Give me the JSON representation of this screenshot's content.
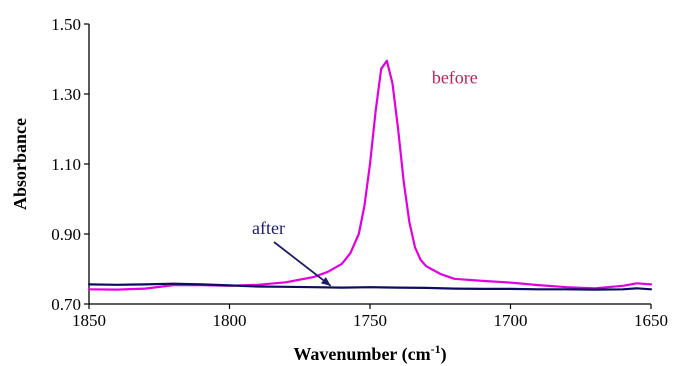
{
  "chart_data": {
    "type": "line",
    "title": "",
    "xlabel": "Wavenumber (cm",
    "xlabel_sup": "-1",
    "xlabel_tail": ")",
    "ylabel": "Absorbance",
    "xlim": [
      1850,
      1650
    ],
    "ylim": [
      0.7,
      1.5
    ],
    "x_reversed": true,
    "grid": false,
    "x_ticks": [
      1850,
      1800,
      1750,
      1700,
      1650
    ],
    "x_tick_labels": [
      "1850",
      "1800",
      "1750",
      "1700",
      "1650"
    ],
    "y_ticks": [
      0.7,
      0.9,
      1.1,
      1.3,
      1.5
    ],
    "y_tick_labels": [
      "0.70",
      "0.90",
      "1.10",
      "1.30",
      "1.50"
    ],
    "series": [
      {
        "name": "before",
        "color": "#e100e1",
        "x": [
          1850,
          1840,
          1830,
          1820,
          1810,
          1800,
          1790,
          1780,
          1770,
          1765,
          1760,
          1757,
          1754,
          1752,
          1750,
          1748,
          1746,
          1744,
          1742,
          1740,
          1738,
          1736,
          1734,
          1732,
          1730,
          1725,
          1720,
          1710,
          1700,
          1690,
          1680,
          1670,
          1660,
          1655,
          1650
        ],
        "y": [
          0.742,
          0.741,
          0.744,
          0.754,
          0.754,
          0.752,
          0.755,
          0.762,
          0.777,
          0.792,
          0.815,
          0.845,
          0.9,
          0.98,
          1.1,
          1.25,
          1.372,
          1.395,
          1.33,
          1.2,
          1.05,
          0.935,
          0.862,
          0.826,
          0.808,
          0.786,
          0.772,
          0.766,
          0.761,
          0.754,
          0.748,
          0.745,
          0.752,
          0.759,
          0.756
        ]
      },
      {
        "name": "after",
        "color": "#0d0d5c",
        "x": [
          1850,
          1840,
          1830,
          1820,
          1810,
          1800,
          1790,
          1780,
          1770,
          1760,
          1750,
          1740,
          1730,
          1720,
          1710,
          1700,
          1690,
          1680,
          1670,
          1660,
          1655,
          1650
        ],
        "y": [
          0.756,
          0.755,
          0.756,
          0.758,
          0.756,
          0.753,
          0.75,
          0.749,
          0.748,
          0.747,
          0.748,
          0.747,
          0.746,
          0.744,
          0.743,
          0.743,
          0.742,
          0.742,
          0.741,
          0.742,
          0.745,
          0.742
        ]
      }
    ],
    "annotations": [
      {
        "text": "before",
        "color": "#c0205a",
        "x": 1728,
        "y": 1.33
      },
      {
        "text": "after",
        "color": "#1c1c6e",
        "x": 1792,
        "y": 0.9,
        "arrow_to": [
          1764,
          0.752
        ]
      }
    ]
  }
}
